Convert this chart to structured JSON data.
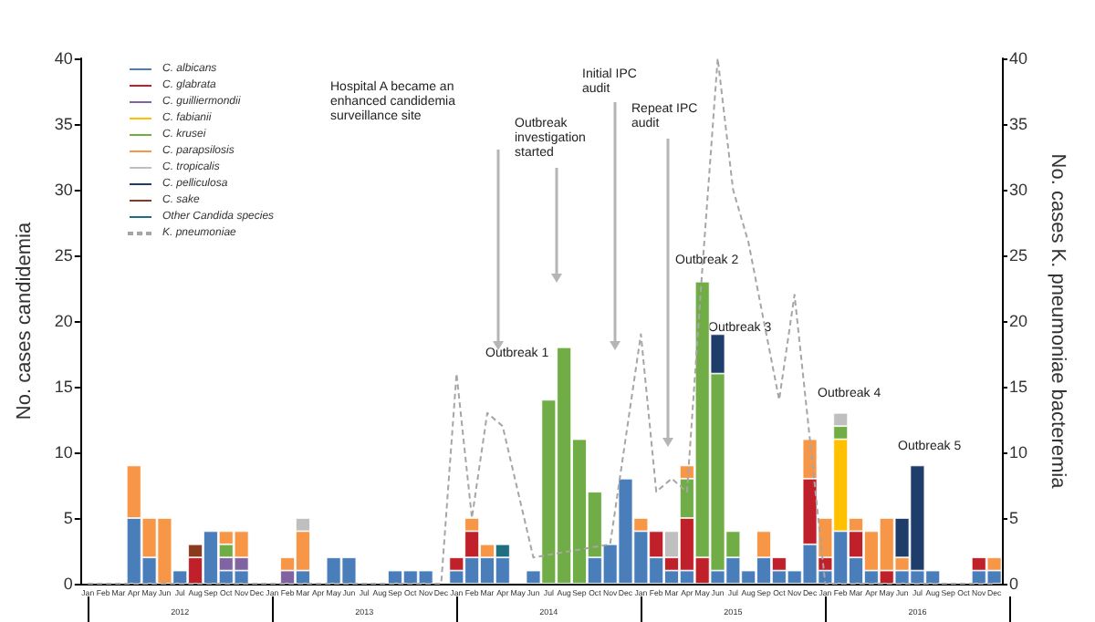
{
  "chart_data": {
    "type": "bar",
    "stacked": true,
    "ylabel": "No. cases candidemia",
    "y2label": "No. cases K. pneumoniae bacteremia",
    "categories": [
      "Jan",
      "Feb",
      "Mar",
      "Apr",
      "May",
      "Jun",
      "Jul",
      "Aug",
      "Sep",
      "Oct",
      "Nov",
      "Dec",
      "Jan",
      "Feb",
      "Mar",
      "Apr",
      "May",
      "Jun",
      "Jul",
      "Aug",
      "Sep",
      "Oct",
      "Nov",
      "Dec",
      "Jan",
      "Feb",
      "Mar",
      "Apr",
      "May",
      "Jun",
      "Jul",
      "Aug",
      "Sep",
      "Oct",
      "Nov",
      "Dec",
      "Jan",
      "Feb",
      "Mar",
      "Apr",
      "May",
      "Jun",
      "Jul",
      "Aug",
      "Sep",
      "Oct",
      "Nov",
      "Dec",
      "Jan",
      "Feb",
      "Mar",
      "Apr",
      "May",
      "Jun",
      "Jul",
      "Aug",
      "Sep",
      "Oct",
      "Nov",
      "Dec"
    ],
    "series": [
      {
        "name": "C. albicans",
        "color": "#4a7ebb",
        "values": [
          0,
          0,
          0,
          5,
          2,
          0,
          1,
          0,
          4,
          1,
          1,
          0,
          0,
          0,
          1,
          0,
          2,
          2,
          0,
          0,
          1,
          1,
          1,
          0,
          1,
          2,
          2,
          2,
          0,
          1,
          0,
          0,
          0,
          2,
          3,
          8,
          4,
          2,
          1,
          1,
          0,
          1,
          2,
          1,
          2,
          1,
          1,
          3,
          1,
          4,
          2,
          1,
          0,
          1,
          1,
          1,
          0,
          0,
          1,
          1
        ]
      },
      {
        "name": "C. glabrata",
        "color": "#c0202a",
        "values": [
          0,
          0,
          0,
          0,
          0,
          0,
          0,
          2,
          0,
          0,
          0,
          0,
          0,
          0,
          0,
          0,
          0,
          0,
          0,
          0,
          0,
          0,
          0,
          0,
          1,
          2,
          0,
          0,
          0,
          0,
          0,
          0,
          0,
          0,
          0,
          0,
          0,
          2,
          1,
          4,
          2,
          0,
          0,
          0,
          0,
          1,
          0,
          5,
          1,
          0,
          2,
          0,
          1,
          0,
          0,
          0,
          0,
          0,
          1,
          0
        ]
      },
      {
        "name": "C. guilliermondii",
        "color": "#8064a2",
        "values": [
          0,
          0,
          0,
          0,
          0,
          0,
          0,
          0,
          0,
          1,
          1,
          0,
          0,
          1,
          0,
          0,
          0,
          0,
          0,
          0,
          0,
          0,
          0,
          0,
          0,
          0,
          0,
          0,
          0,
          0,
          0,
          0,
          0,
          0,
          0,
          0,
          0,
          0,
          0,
          0,
          0,
          0,
          0,
          0,
          0,
          0,
          0,
          0,
          0,
          0,
          0,
          0,
          0,
          0,
          0,
          0,
          0,
          0,
          0,
          0
        ]
      },
      {
        "name": "C. fabianii",
        "color": "#ffc000",
        "values": [
          0,
          0,
          0,
          0,
          0,
          0,
          0,
          0,
          0,
          0,
          0,
          0,
          0,
          0,
          0,
          0,
          0,
          0,
          0,
          0,
          0,
          0,
          0,
          0,
          0,
          0,
          0,
          0,
          0,
          0,
          0,
          0,
          0,
          0,
          0,
          0,
          0,
          0,
          0,
          0,
          0,
          0,
          0,
          0,
          0,
          0,
          0,
          0,
          0,
          7,
          0,
          0,
          0,
          0,
          0,
          0,
          0,
          0,
          0,
          0
        ]
      },
      {
        "name": "C. krusei",
        "color": "#70ad47",
        "values": [
          0,
          0,
          0,
          0,
          0,
          0,
          0,
          0,
          0,
          1,
          0,
          0,
          0,
          0,
          0,
          0,
          0,
          0,
          0,
          0,
          0,
          0,
          0,
          0,
          0,
          0,
          0,
          0,
          0,
          0,
          14,
          18,
          11,
          5,
          0,
          0,
          0,
          0,
          0,
          3,
          21,
          15,
          2,
          0,
          0,
          0,
          0,
          0,
          0,
          1,
          0,
          0,
          0,
          0,
          0,
          0,
          0,
          0,
          0,
          0
        ]
      },
      {
        "name": "C. parapsilosis",
        "color": "#f79646",
        "values": [
          0,
          0,
          0,
          4,
          3,
          5,
          0,
          0,
          0,
          1,
          2,
          0,
          0,
          1,
          3,
          0,
          0,
          0,
          0,
          0,
          0,
          0,
          0,
          0,
          0,
          1,
          1,
          0,
          0,
          0,
          0,
          0,
          0,
          0,
          0,
          0,
          1,
          0,
          0,
          1,
          0,
          0,
          0,
          0,
          2,
          0,
          0,
          3,
          3,
          0,
          1,
          3,
          4,
          1,
          0,
          0,
          0,
          0,
          0,
          1
        ]
      },
      {
        "name": "C. tropicalis",
        "color": "#bfbfbf",
        "values": [
          0,
          0,
          0,
          0,
          0,
          0,
          0,
          0,
          0,
          0,
          0,
          0,
          0,
          0,
          1,
          0,
          0,
          0,
          0,
          0,
          0,
          0,
          0,
          0,
          0,
          0,
          0,
          0,
          0,
          0,
          0,
          0,
          0,
          0,
          0,
          0,
          0,
          0,
          2,
          0,
          0,
          0,
          0,
          0,
          0,
          0,
          0,
          0,
          0,
          1,
          0,
          0,
          0,
          0,
          0,
          0,
          0,
          0,
          0,
          0
        ]
      },
      {
        "name": "C. pelliculosa",
        "color": "#1f3d6b",
        "values": [
          0,
          0,
          0,
          0,
          0,
          0,
          0,
          0,
          0,
          0,
          0,
          0,
          0,
          0,
          0,
          0,
          0,
          0,
          0,
          0,
          0,
          0,
          0,
          0,
          0,
          0,
          0,
          0,
          0,
          0,
          0,
          0,
          0,
          0,
          0,
          0,
          0,
          0,
          0,
          0,
          0,
          3,
          0,
          0,
          0,
          0,
          0,
          0,
          0,
          0,
          0,
          0,
          0,
          3,
          8,
          0,
          0,
          0,
          0,
          0
        ]
      },
      {
        "name": "C. sake",
        "color": "#8b3a1e",
        "values": [
          0,
          0,
          0,
          0,
          0,
          0,
          0,
          1,
          0,
          0,
          0,
          0,
          0,
          0,
          0,
          0,
          0,
          0,
          0,
          0,
          0,
          0,
          0,
          0,
          0,
          0,
          0,
          0,
          0,
          0,
          0,
          0,
          0,
          0,
          0,
          0,
          0,
          0,
          0,
          0,
          0,
          0,
          0,
          0,
          0,
          0,
          0,
          0,
          0,
          0,
          0,
          0,
          0,
          0,
          0,
          0,
          0,
          0,
          0,
          0
        ]
      },
      {
        "name": "Other Candida species",
        "color": "#1f6f80",
        "values": [
          0,
          0,
          0,
          0,
          0,
          0,
          0,
          0,
          0,
          0,
          0,
          0,
          0,
          0,
          0,
          0,
          0,
          0,
          0,
          0,
          0,
          0,
          0,
          0,
          0,
          0,
          0,
          1,
          0,
          0,
          0,
          0,
          0,
          0,
          0,
          0,
          0,
          0,
          0,
          0,
          0,
          0,
          0,
          0,
          0,
          0,
          0,
          0,
          0,
          0,
          0,
          0,
          0,
          0,
          0,
          0,
          0,
          0,
          0,
          0
        ]
      },
      {
        "name": "K. pneumoniae",
        "type": "line",
        "axis": "y2",
        "line_style": "dashed",
        "marker": "none",
        "color": "#a6a6a6",
        "values": [
          0,
          0,
          0,
          0,
          0,
          0,
          0,
          0,
          0,
          0,
          0,
          0,
          0,
          0,
          0,
          0,
          0,
          0,
          0,
          0,
          0,
          0,
          0,
          0,
          16,
          5,
          13,
          12,
          7,
          2,
          null,
          null,
          null,
          null,
          3,
          11,
          19,
          7,
          8,
          7,
          24,
          40,
          30,
          26,
          20,
          14,
          22,
          11,
          0,
          0,
          0,
          0,
          0,
          0,
          0,
          0,
          0,
          0,
          0,
          0
        ]
      }
    ],
    "ylim": [
      0,
      40
    ],
    "yticks": [
      0,
      5,
      10,
      15,
      20,
      25,
      30,
      35,
      40
    ],
    "y2lim": [
      0,
      40
    ],
    "y2ticks": [
      0,
      5,
      10,
      15,
      20,
      25,
      30,
      35,
      40
    ],
    "grid": false,
    "legend": "top left",
    "annotations": [
      "Hospital A became an enhanced candidemia surveillance site",
      "Outbreak investigation started",
      "Initial IPC audit",
      "Repeat IPC audit",
      "Outbreak 1",
      "Outbreak 2",
      "Outbreak 3",
      "Outbreak 4",
      "Outbreak 5",
      "2012",
      "2013",
      "2014",
      "2015",
      "2016"
    ]
  }
}
